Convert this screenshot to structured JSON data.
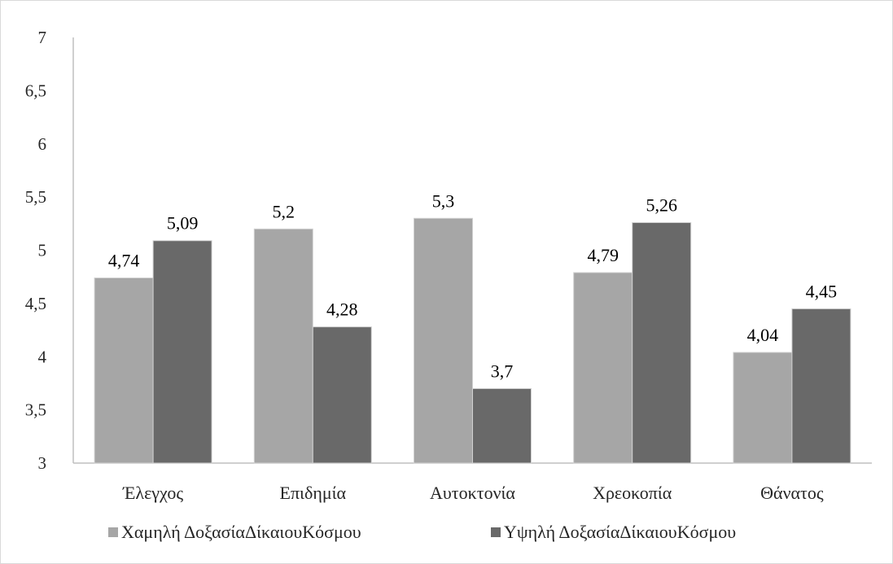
{
  "chart_data": {
    "type": "bar",
    "title": "",
    "xlabel": "",
    "ylabel": "",
    "ylim": [
      3,
      7
    ],
    "y_ticks": [
      3,
      3.5,
      4,
      4.5,
      5,
      5.5,
      6,
      6.5,
      7
    ],
    "y_tick_labels": [
      "3",
      "3,5",
      "4",
      "4,5",
      "5",
      "5,5",
      "6",
      "6,5",
      "7"
    ],
    "grid": false,
    "legend_position": "bottom",
    "categories": [
      "Έλεγχος",
      "Επιδημία",
      "Αυτοκτονία",
      "Χρεοκοπία",
      "Θάνατος"
    ],
    "series": [
      {
        "name": "Χαμηλή ΔοξασίαΔίκαιουΚόσμου",
        "color": "#a6a6a6",
        "values": [
          4.74,
          5.2,
          5.3,
          4.79,
          4.04
        ],
        "labels": [
          "4,74",
          "5,2",
          "5,3",
          "4,79",
          "4,04"
        ]
      },
      {
        "name": "Υψηλή ΔοξασίαΔίκαιουΚόσμου",
        "color": "#696969",
        "values": [
          5.09,
          4.28,
          3.7,
          5.26,
          4.45
        ],
        "labels": [
          "5,09",
          "4,28",
          "3,7",
          "5,26",
          "4,45"
        ]
      }
    ]
  }
}
